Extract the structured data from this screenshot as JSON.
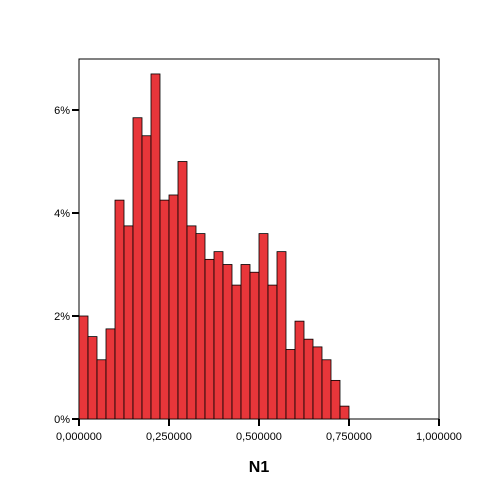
{
  "chart_data": {
    "type": "bar",
    "title": "",
    "xlabel": "N1",
    "ylabel": "",
    "xlim": [
      0.0,
      1.0
    ],
    "ylim": [
      0,
      7
    ],
    "bin_width": 0.025,
    "x_ticks": [
      {
        "value": 0.0,
        "label": "0,000000"
      },
      {
        "value": 0.25,
        "label": "0,250000"
      },
      {
        "value": 0.5,
        "label": "0,500000"
      },
      {
        "value": 0.75,
        "label": "0,750000"
      },
      {
        "value": 1.0,
        "label": "1,000000"
      }
    ],
    "y_ticks": [
      {
        "value": 0,
        "label": "0%"
      },
      {
        "value": 2,
        "label": "2%"
      },
      {
        "value": 4,
        "label": "4%"
      },
      {
        "value": 6,
        "label": "6%"
      }
    ],
    "bar_color": "#e8363a",
    "bar_edge_color": "#000000",
    "grid": false,
    "bins": [
      {
        "x": 0.0,
        "value": 2.0
      },
      {
        "x": 0.025,
        "value": 1.6
      },
      {
        "x": 0.05,
        "value": 1.15
      },
      {
        "x": 0.075,
        "value": 1.75
      },
      {
        "x": 0.1,
        "value": 4.25
      },
      {
        "x": 0.125,
        "value": 3.75
      },
      {
        "x": 0.15,
        "value": 5.85
      },
      {
        "x": 0.175,
        "value": 5.5
      },
      {
        "x": 0.2,
        "value": 6.7
      },
      {
        "x": 0.225,
        "value": 4.25
      },
      {
        "x": 0.25,
        "value": 4.35
      },
      {
        "x": 0.275,
        "value": 5.0
      },
      {
        "x": 0.3,
        "value": 3.75
      },
      {
        "x": 0.325,
        "value": 3.6
      },
      {
        "x": 0.35,
        "value": 3.1
      },
      {
        "x": 0.375,
        "value": 3.25
      },
      {
        "x": 0.4,
        "value": 3.0
      },
      {
        "x": 0.425,
        "value": 2.6
      },
      {
        "x": 0.45,
        "value": 3.0
      },
      {
        "x": 0.475,
        "value": 2.85
      },
      {
        "x": 0.5,
        "value": 3.6
      },
      {
        "x": 0.525,
        "value": 2.6
      },
      {
        "x": 0.55,
        "value": 3.25
      },
      {
        "x": 0.575,
        "value": 1.35
      },
      {
        "x": 0.6,
        "value": 1.9
      },
      {
        "x": 0.625,
        "value": 1.55
      },
      {
        "x": 0.65,
        "value": 1.4
      },
      {
        "x": 0.675,
        "value": 1.15
      },
      {
        "x": 0.7,
        "value": 0.75
      },
      {
        "x": 0.725,
        "value": 0.25
      }
    ]
  }
}
